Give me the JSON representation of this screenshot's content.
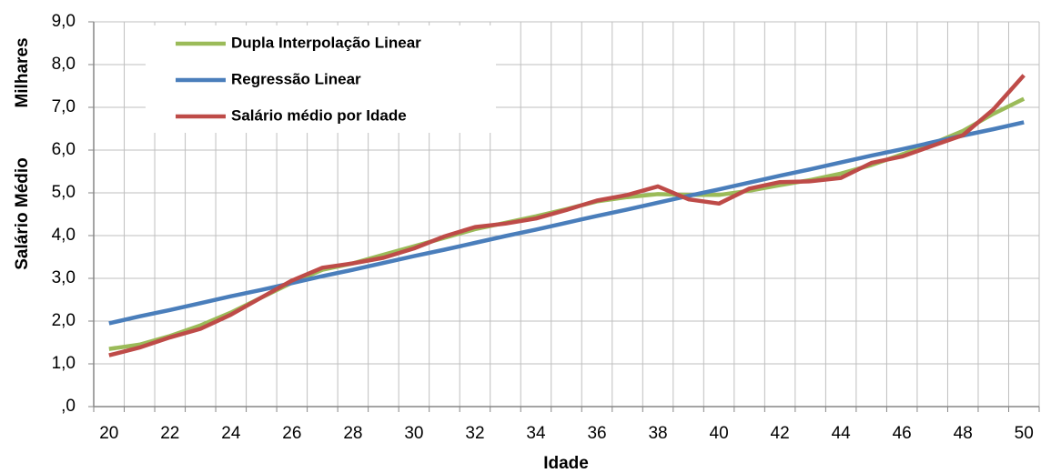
{
  "chart_data": {
    "type": "line",
    "x_label": "Idade",
    "y_label": "Salário Médio",
    "y_unit": "Milhares",
    "categories": [
      "20",
      null,
      "22",
      null,
      "24",
      null,
      "26",
      null,
      "28",
      null,
      "30",
      null,
      "32",
      null,
      "34",
      null,
      "36",
      null,
      "38",
      null,
      "40",
      null,
      "42",
      null,
      "44",
      null,
      "46",
      null,
      "48",
      null,
      "50"
    ],
    "ylim": [
      0,
      9
    ],
    "yticks": [
      {
        "value": 0,
        "label": ",0"
      },
      {
        "value": 1,
        "label": "1,0"
      },
      {
        "value": 2,
        "label": "2,0"
      },
      {
        "value": 3,
        "label": "3,0"
      },
      {
        "value": 4,
        "label": "4,0"
      },
      {
        "value": 5,
        "label": "5,0"
      },
      {
        "value": 6,
        "label": "6,0"
      },
      {
        "value": 7,
        "label": "7,0"
      },
      {
        "value": 8,
        "label": "8,0"
      },
      {
        "value": 9,
        "label": "9,0"
      }
    ],
    "grid": true,
    "legend": "upper left",
    "series": [
      {
        "name": "Dupla Interpolação Linear",
        "color": "#9bbb59",
        "values": [
          1.35,
          1.45,
          1.65,
          1.9,
          2.2,
          2.55,
          2.9,
          3.2,
          3.35,
          3.55,
          3.75,
          3.95,
          4.15,
          4.3,
          4.45,
          4.62,
          4.8,
          4.9,
          4.97,
          4.95,
          4.95,
          5.05,
          5.18,
          5.3,
          5.45,
          5.65,
          5.9,
          6.15,
          6.45,
          6.85,
          7.2
        ]
      },
      {
        "name": "Regressão Linear",
        "color": "#4a7ebb",
        "values": [
          1.95,
          2.11,
          2.26,
          2.42,
          2.58,
          2.73,
          2.89,
          3.05,
          3.2,
          3.36,
          3.52,
          3.67,
          3.83,
          3.99,
          4.14,
          4.3,
          4.46,
          4.61,
          4.77,
          4.93,
          5.08,
          5.24,
          5.4,
          5.55,
          5.71,
          5.87,
          6.02,
          6.18,
          6.34,
          6.49,
          6.65
        ]
      },
      {
        "name": "Salário médio por Idade",
        "color": "#be4b48",
        "values": [
          1.2,
          1.38,
          1.62,
          1.82,
          2.15,
          2.55,
          2.95,
          3.25,
          3.35,
          3.48,
          3.7,
          3.98,
          4.2,
          4.28,
          4.4,
          4.6,
          4.82,
          4.95,
          5.15,
          4.85,
          4.75,
          5.1,
          5.25,
          5.27,
          5.35,
          5.7,
          5.85,
          6.1,
          6.35,
          6.95,
          7.75
        ]
      }
    ]
  }
}
